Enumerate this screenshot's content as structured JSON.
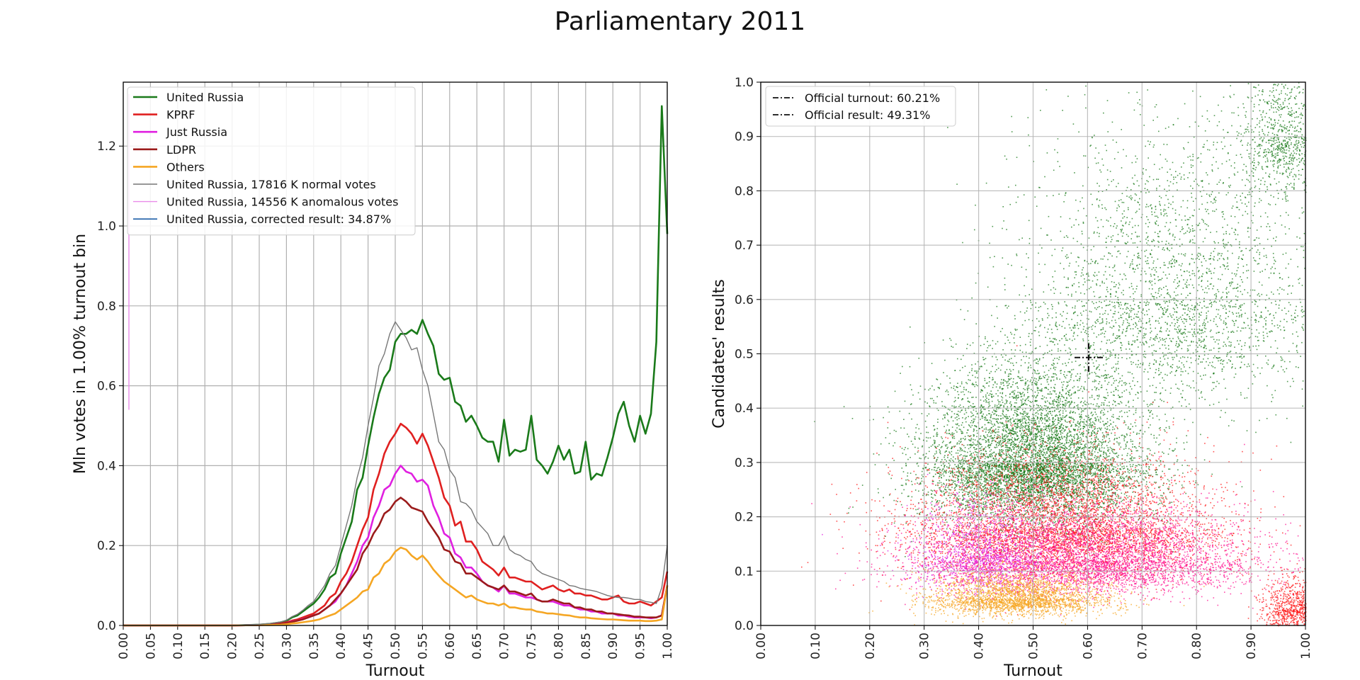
{
  "title": "Parliamentary 2011",
  "chart_data": [
    {
      "type": "line",
      "xlabel": "Turnout",
      "ylabel": "Mln votes in 1.00% turnout bin",
      "xlim": [
        0.0,
        1.0
      ],
      "ylim": [
        0.0,
        1.36
      ],
      "xticks": [
        "0.00",
        "0.05",
        "0.10",
        "0.15",
        "0.20",
        "0.25",
        "0.30",
        "0.35",
        "0.40",
        "0.45",
        "0.50",
        "0.55",
        "0.60",
        "0.65",
        "0.70",
        "0.75",
        "0.80",
        "0.85",
        "0.90",
        "0.95",
        "1.00"
      ],
      "yticks": [
        "0.0",
        "0.2",
        "0.4",
        "0.6",
        "0.8",
        "1.0",
        "1.2"
      ],
      "grid": true,
      "legend_position": "top-left",
      "x": [
        0.0,
        0.05,
        0.1,
        0.15,
        0.2,
        0.25,
        0.27,
        0.29,
        0.3,
        0.31,
        0.32,
        0.33,
        0.34,
        0.35,
        0.36,
        0.37,
        0.38,
        0.39,
        0.4,
        0.41,
        0.42,
        0.43,
        0.44,
        0.45,
        0.46,
        0.47,
        0.48,
        0.49,
        0.5,
        0.51,
        0.52,
        0.53,
        0.54,
        0.55,
        0.56,
        0.57,
        0.58,
        0.59,
        0.6,
        0.61,
        0.62,
        0.63,
        0.64,
        0.65,
        0.66,
        0.67,
        0.68,
        0.69,
        0.7,
        0.71,
        0.72,
        0.73,
        0.74,
        0.75,
        0.76,
        0.77,
        0.78,
        0.79,
        0.8,
        0.81,
        0.82,
        0.83,
        0.84,
        0.85,
        0.86,
        0.87,
        0.88,
        0.89,
        0.9,
        0.91,
        0.92,
        0.93,
        0.94,
        0.95,
        0.96,
        0.97,
        0.98,
        0.99,
        1.0
      ],
      "series": [
        {
          "name": "United Russia",
          "color": "#1a7a1a",
          "width": 2.6,
          "values": [
            0,
            0,
            0,
            0,
            0,
            0.002,
            0.004,
            0.008,
            0.012,
            0.02,
            0.025,
            0.035,
            0.045,
            0.055,
            0.07,
            0.09,
            0.12,
            0.13,
            0.18,
            0.22,
            0.26,
            0.34,
            0.37,
            0.45,
            0.52,
            0.58,
            0.62,
            0.64,
            0.71,
            0.73,
            0.73,
            0.74,
            0.73,
            0.765,
            0.73,
            0.7,
            0.63,
            0.615,
            0.62,
            0.56,
            0.55,
            0.51,
            0.525,
            0.5,
            0.47,
            0.46,
            0.46,
            0.41,
            0.515,
            0.425,
            0.44,
            0.435,
            0.44,
            0.525,
            0.415,
            0.4,
            0.38,
            0.41,
            0.45,
            0.415,
            0.44,
            0.38,
            0.385,
            0.46,
            0.365,
            0.38,
            0.375,
            0.42,
            0.47,
            0.53,
            0.56,
            0.5,
            0.46,
            0.525,
            0.48,
            0.53,
            0.71,
            1.3,
            0.98
          ]
        },
        {
          "name": "KPRF",
          "color": "#e02020",
          "width": 2.6,
          "values": [
            0,
            0,
            0,
            0,
            0,
            0.001,
            0.003,
            0.005,
            0.008,
            0.012,
            0.015,
            0.02,
            0.025,
            0.03,
            0.04,
            0.05,
            0.07,
            0.08,
            0.11,
            0.13,
            0.16,
            0.2,
            0.24,
            0.27,
            0.34,
            0.38,
            0.43,
            0.46,
            0.48,
            0.505,
            0.495,
            0.48,
            0.455,
            0.48,
            0.45,
            0.41,
            0.37,
            0.32,
            0.3,
            0.25,
            0.26,
            0.21,
            0.21,
            0.19,
            0.16,
            0.15,
            0.14,
            0.125,
            0.145,
            0.12,
            0.12,
            0.115,
            0.11,
            0.11,
            0.1,
            0.09,
            0.095,
            0.1,
            0.09,
            0.085,
            0.09,
            0.08,
            0.08,
            0.075,
            0.075,
            0.07,
            0.065,
            0.065,
            0.07,
            0.075,
            0.06,
            0.055,
            0.055,
            0.06,
            0.055,
            0.05,
            0.06,
            0.07,
            0.135
          ]
        },
        {
          "name": "Just Russia",
          "color": "#e020e0",
          "width": 2.6,
          "values": [
            0,
            0,
            0,
            0,
            0,
            0.001,
            0.002,
            0.004,
            0.006,
            0.01,
            0.012,
            0.016,
            0.02,
            0.025,
            0.03,
            0.04,
            0.05,
            0.06,
            0.08,
            0.1,
            0.13,
            0.16,
            0.2,
            0.22,
            0.27,
            0.3,
            0.34,
            0.35,
            0.38,
            0.4,
            0.385,
            0.38,
            0.36,
            0.365,
            0.35,
            0.3,
            0.27,
            0.23,
            0.22,
            0.18,
            0.17,
            0.145,
            0.145,
            0.13,
            0.11,
            0.1,
            0.095,
            0.085,
            0.1,
            0.08,
            0.08,
            0.075,
            0.07,
            0.07,
            0.065,
            0.06,
            0.06,
            0.06,
            0.055,
            0.05,
            0.05,
            0.045,
            0.04,
            0.04,
            0.035,
            0.035,
            0.03,
            0.03,
            0.03,
            0.025,
            0.025,
            0.022,
            0.02,
            0.02,
            0.02,
            0.018,
            0.02,
            0.025,
            0.1
          ]
        },
        {
          "name": "LDPR",
          "color": "#9b1b1b",
          "width": 2.6,
          "values": [
            0,
            0,
            0,
            0,
            0,
            0.001,
            0.002,
            0.004,
            0.006,
            0.009,
            0.012,
            0.015,
            0.02,
            0.025,
            0.03,
            0.04,
            0.05,
            0.065,
            0.08,
            0.1,
            0.12,
            0.14,
            0.18,
            0.2,
            0.23,
            0.25,
            0.28,
            0.29,
            0.31,
            0.32,
            0.31,
            0.295,
            0.29,
            0.285,
            0.26,
            0.24,
            0.22,
            0.19,
            0.185,
            0.16,
            0.155,
            0.13,
            0.13,
            0.12,
            0.11,
            0.1,
            0.095,
            0.09,
            0.1,
            0.085,
            0.085,
            0.08,
            0.075,
            0.08,
            0.065,
            0.06,
            0.06,
            0.065,
            0.06,
            0.055,
            0.055,
            0.045,
            0.045,
            0.04,
            0.04,
            0.035,
            0.035,
            0.03,
            0.03,
            0.028,
            0.026,
            0.025,
            0.022,
            0.022,
            0.02,
            0.02,
            0.02,
            0.025,
            0.1
          ]
        },
        {
          "name": "Others",
          "color": "#f5a623",
          "width": 2.6,
          "values": [
            0,
            0,
            0,
            0,
            0,
            0.001,
            0.001,
            0.002,
            0.003,
            0.005,
            0.006,
            0.008,
            0.01,
            0.012,
            0.015,
            0.02,
            0.025,
            0.03,
            0.04,
            0.05,
            0.06,
            0.07,
            0.085,
            0.09,
            0.12,
            0.13,
            0.155,
            0.165,
            0.185,
            0.195,
            0.19,
            0.175,
            0.165,
            0.175,
            0.16,
            0.14,
            0.125,
            0.11,
            0.1,
            0.09,
            0.08,
            0.07,
            0.075,
            0.065,
            0.06,
            0.055,
            0.055,
            0.05,
            0.055,
            0.045,
            0.045,
            0.042,
            0.04,
            0.04,
            0.035,
            0.033,
            0.03,
            0.03,
            0.028,
            0.026,
            0.025,
            0.022,
            0.02,
            0.02,
            0.018,
            0.017,
            0.016,
            0.015,
            0.015,
            0.014,
            0.013,
            0.012,
            0.012,
            0.012,
            0.011,
            0.011,
            0.012,
            0.015,
            0.1
          ]
        },
        {
          "name": "United Russia, 17816 K normal votes",
          "color": "#777777",
          "width": 1.4,
          "values": [
            0,
            0,
            0,
            0,
            0,
            0.003,
            0.005,
            0.009,
            0.013,
            0.022,
            0.028,
            0.038,
            0.05,
            0.06,
            0.08,
            0.1,
            0.13,
            0.15,
            0.2,
            0.25,
            0.3,
            0.37,
            0.42,
            0.5,
            0.57,
            0.65,
            0.68,
            0.73,
            0.76,
            0.74,
            0.72,
            0.69,
            0.695,
            0.64,
            0.6,
            0.53,
            0.46,
            0.44,
            0.39,
            0.37,
            0.31,
            0.305,
            0.29,
            0.26,
            0.245,
            0.23,
            0.2,
            0.2,
            0.225,
            0.19,
            0.18,
            0.175,
            0.165,
            0.16,
            0.14,
            0.13,
            0.125,
            0.12,
            0.115,
            0.11,
            0.1,
            0.098,
            0.093,
            0.09,
            0.088,
            0.085,
            0.08,
            0.075,
            0.072,
            0.07,
            0.07,
            0.068,
            0.065,
            0.065,
            0.06,
            0.058,
            0.055,
            0.095,
            0.2
          ]
        }
      ],
      "anomalous_series": {
        "name": "United Russia, 14556 K anomalous votes",
        "color": "#e98be9",
        "x": [
          0.0,
          0.0
        ],
        "values": [
          0.54,
          1.33
        ]
      },
      "corrected_series": {
        "name": "United Russia, corrected result: 34.87%",
        "color": "#1f5fa8"
      }
    },
    {
      "type": "scatter",
      "xlabel": "Turnout",
      "ylabel": "Candidates' results",
      "xlim": [
        0.0,
        1.0
      ],
      "ylim": [
        0.0,
        1.0
      ],
      "xticks": [
        "0.00",
        "0.10",
        "0.20",
        "0.30",
        "0.40",
        "0.50",
        "0.60",
        "0.70",
        "0.80",
        "0.90",
        "1.00"
      ],
      "yticks": [
        "0.0",
        "0.1",
        "0.2",
        "0.3",
        "0.4",
        "0.5",
        "0.6",
        "0.7",
        "0.8",
        "0.9",
        "1.0"
      ],
      "grid": true,
      "legend_position": "top-left",
      "legend": [
        "Official turnout: 60.21%",
        "Official result: 49.31%"
      ],
      "official_turnout": 0.6021,
      "official_result": 0.4931,
      "clouds": [
        {
          "party": "United Russia",
          "color": "#1a7a1a",
          "center": [
            0.5,
            0.3
          ],
          "spread": [
            0.1,
            0.09
          ],
          "count": 7000
        },
        {
          "party": "United Russia",
          "color": "#1a7a1a",
          "center": [
            0.75,
            0.6
          ],
          "spread": [
            0.14,
            0.16
          ],
          "count": 3000
        },
        {
          "party": "United Russia",
          "color": "#1a7a1a",
          "center": [
            0.96,
            0.9
          ],
          "spread": [
            0.04,
            0.08
          ],
          "count": 900
        },
        {
          "party": "KPRF",
          "color": "#ff1a1a",
          "center": [
            0.55,
            0.18
          ],
          "spread": [
            0.14,
            0.07
          ],
          "count": 5000
        },
        {
          "party": "Just Russia",
          "color": "#ff1493",
          "center": [
            0.6,
            0.12
          ],
          "spread": [
            0.15,
            0.05
          ],
          "count": 5000
        },
        {
          "party": "Just Russia",
          "color": "#e020e0",
          "center": [
            0.4,
            0.13
          ],
          "spread": [
            0.06,
            0.05
          ],
          "count": 1200
        },
        {
          "party": "Others",
          "color": "#f5a623",
          "center": [
            0.47,
            0.05
          ],
          "spread": [
            0.08,
            0.025
          ],
          "count": 2600
        },
        {
          "party": "KPRF",
          "color": "#ff1a1a",
          "center": [
            0.98,
            0.03
          ],
          "spread": [
            0.03,
            0.03
          ],
          "count": 900
        }
      ]
    }
  ]
}
